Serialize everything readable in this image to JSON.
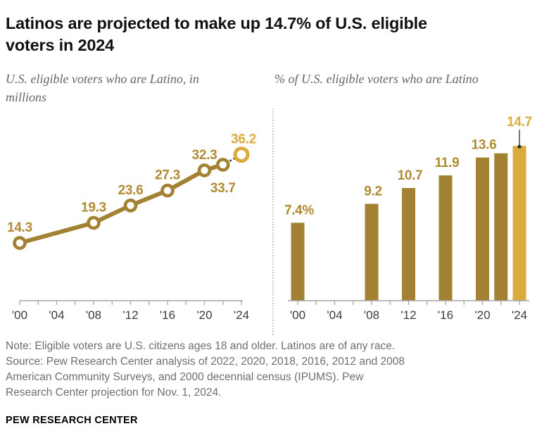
{
  "header": {
    "title": "Latinos are projected to make up 14.7% of U.S. eligible voters in 2024"
  },
  "charts": {
    "left_subtitle": "U.S. eligible voters who are Latino, in millions",
    "right_subtitle": "% of U.S. eligible voters who are Latino"
  },
  "chart_data": [
    {
      "type": "line",
      "title": "U.S. eligible voters who are Latino, in millions",
      "x": [
        2000,
        2008,
        2012,
        2016,
        2020,
        2022,
        2024
      ],
      "values": [
        14.3,
        19.3,
        23.6,
        27.3,
        32.3,
        33.7,
        36.2
      ],
      "point_labels": [
        "14.3",
        "19.3",
        "23.6",
        "27.3",
        "32.3",
        "33.7",
        "36.2"
      ],
      "label_side": [
        "above",
        "above",
        "above",
        "above",
        "above",
        "below",
        "above"
      ],
      "projected_index": 6,
      "xlim": [
        2000,
        2024
      ],
      "ylim": [
        0,
        48
      ],
      "xtick_step_years": 2,
      "xtick_labels": [
        "'00",
        "'04",
        "'08",
        "'12",
        "'16",
        "'20",
        "'24"
      ],
      "grid": "off",
      "legend": "none"
    },
    {
      "type": "bar",
      "title": "% of U.S. eligible voters who are Latino",
      "x": [
        2000,
        2008,
        2012,
        2016,
        2020,
        2022,
        2024
      ],
      "values": [
        7.4,
        9.2,
        10.7,
        11.9,
        13.6,
        14.0,
        14.7
      ],
      "bar_labels": [
        "7.4%",
        "9.2",
        "10.7",
        "11.9",
        "13.6",
        "",
        "14.7"
      ],
      "projected_index": 6,
      "xlim": [
        2000,
        2024
      ],
      "ylim": [
        0,
        18.7
      ],
      "xtick_step_years": 2,
      "xtick_labels": [
        "'00",
        "'04",
        "'08",
        "'12",
        "'16",
        "'20",
        "'24"
      ],
      "grid": "off",
      "legend": "none"
    }
  ],
  "colors": {
    "gold_dark": "#A28232",
    "gold_label": "#B18B33",
    "gold_light": "#D9AC3D",
    "leader": "#2e2e2e",
    "axis": "#a6a6a6",
    "tick_text": "#3b3b3b"
  },
  "footer": {
    "note": "Note: Eligible voters are U.S. citizens ages 18 and older. Latinos are of any race.",
    "source": "Source: Pew Research Center analysis of 2022, 2020, 2018, 2016, 2012 and 2008 American Community Surveys, and 2000 decennial census (IPUMS). Pew Research Center projection for Nov. 1, 2024.",
    "brand": "PEW RESEARCH CENTER"
  }
}
